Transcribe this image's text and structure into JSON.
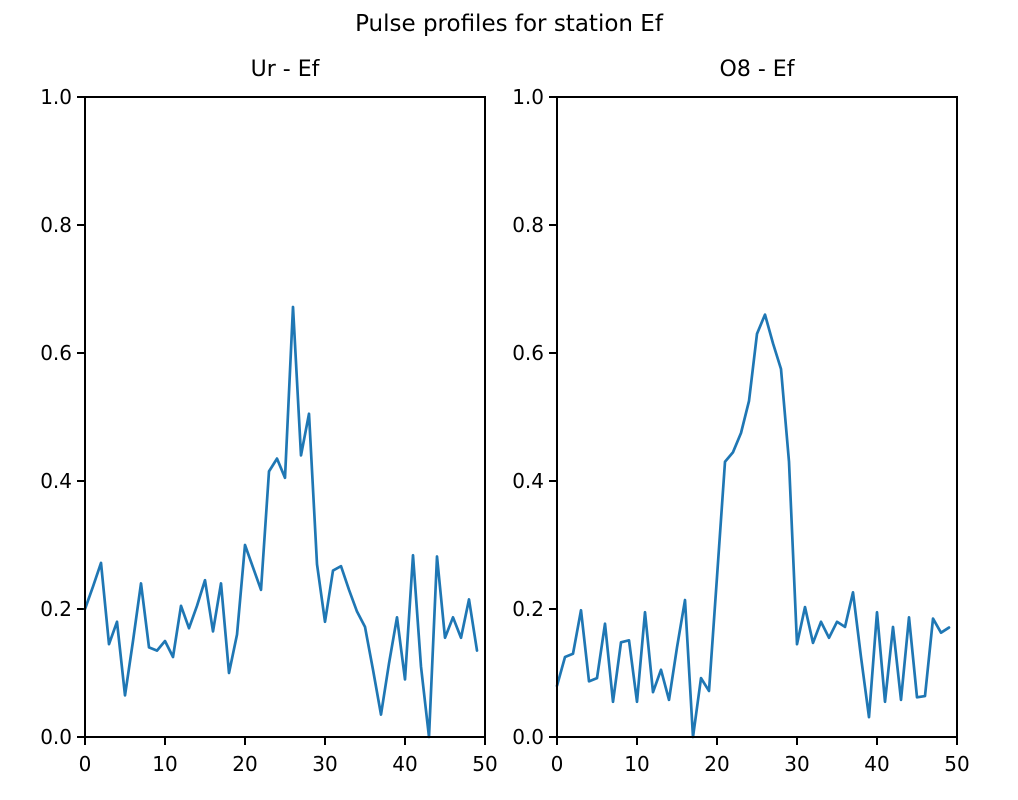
{
  "figure": {
    "suptitle": "Pulse profiles for station Ef",
    "background": "#ffffff",
    "line_color": "#1f77b4",
    "text_color": "#000000"
  },
  "chart_data": [
    {
      "type": "line",
      "title": "Ur - Ef",
      "xlabel": "",
      "ylabel": "",
      "xlim": [
        0,
        50
      ],
      "ylim": [
        0.0,
        1.0
      ],
      "xticks": [
        "0",
        "10",
        "20",
        "30",
        "40",
        "50"
      ],
      "yticks": [
        "0.0",
        "0.2",
        "0.4",
        "0.6",
        "0.8",
        "1.0"
      ],
      "grid": false,
      "legend_position": "none",
      "x": [
        0,
        1,
        2,
        3,
        4,
        5,
        6,
        7,
        8,
        9,
        10,
        11,
        12,
        13,
        14,
        15,
        16,
        17,
        18,
        19,
        20,
        21,
        22,
        23,
        24,
        25,
        26,
        27,
        28,
        29,
        30,
        31,
        32,
        33,
        34,
        35,
        36,
        37,
        38,
        39,
        40,
        41,
        42,
        43,
        44,
        45,
        46,
        47,
        48,
        49
      ],
      "values": [
        0.2,
        0.235,
        0.272,
        0.145,
        0.18,
        0.065,
        0.15,
        0.24,
        0.14,
        0.135,
        0.15,
        0.125,
        0.205,
        0.17,
        0.205,
        0.245,
        0.165,
        0.24,
        0.1,
        0.16,
        0.3,
        0.265,
        0.23,
        0.415,
        0.435,
        0.405,
        0.672,
        0.44,
        0.505,
        0.27,
        0.18,
        0.26,
        0.267,
        0.23,
        0.196,
        0.172,
        0.105,
        0.035,
        0.115,
        0.187,
        0.09,
        0.284,
        0.11,
        0.0,
        0.282,
        0.155,
        0.187,
        0.155,
        0.215,
        0.135
      ]
    },
    {
      "type": "line",
      "title": "O8 - Ef",
      "xlabel": "",
      "ylabel": "",
      "xlim": [
        0,
        50
      ],
      "ylim": [
        0.0,
        1.0
      ],
      "xticks": [
        "0",
        "10",
        "20",
        "30",
        "40",
        "50"
      ],
      "yticks": [
        "0.0",
        "0.2",
        "0.4",
        "0.6",
        "0.8",
        "1.0"
      ],
      "grid": false,
      "legend_position": "none",
      "x": [
        0,
        1,
        2,
        3,
        4,
        5,
        6,
        7,
        8,
        9,
        10,
        11,
        12,
        13,
        14,
        15,
        16,
        17,
        18,
        19,
        20,
        21,
        22,
        23,
        24,
        25,
        26,
        27,
        28,
        29,
        30,
        31,
        32,
        33,
        34,
        35,
        36,
        37,
        38,
        39,
        40,
        41,
        42,
        43,
        44,
        45,
        46,
        47,
        48,
        49
      ],
      "values": [
        0.08,
        0.125,
        0.13,
        0.198,
        0.087,
        0.092,
        0.177,
        0.055,
        0.148,
        0.151,
        0.055,
        0.195,
        0.07,
        0.105,
        0.058,
        0.14,
        0.214,
        0.0,
        0.092,
        0.072,
        0.25,
        0.43,
        0.445,
        0.475,
        0.525,
        0.63,
        0.66,
        0.615,
        0.575,
        0.43,
        0.145,
        0.203,
        0.147,
        0.18,
        0.155,
        0.18,
        0.172,
        0.226,
        0.125,
        0.031,
        0.195,
        0.055,
        0.172,
        0.058,
        0.187,
        0.062,
        0.064,
        0.185,
        0.163,
        0.171
      ]
    }
  ]
}
